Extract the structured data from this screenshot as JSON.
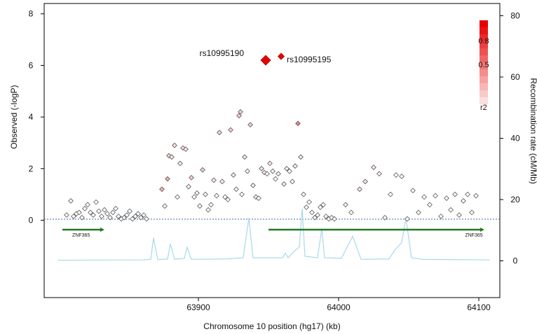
{
  "chart_data": {
    "type": "scatter",
    "title": "",
    "xlabel": "Chromosome 10 position (hg17) (kb)",
    "ylabel": "Observed (-logP)",
    "y2label": "Recombination rate (cM/Mb)",
    "xlim": [
      63790,
      64115
    ],
    "ylim": [
      -3,
      8.4
    ],
    "y2lim": [
      -12,
      84
    ],
    "x_ticks": [
      63900,
      64000,
      64100
    ],
    "y_ticks": [
      0,
      2,
      4,
      6,
      8
    ],
    "y2_ticks": [
      0,
      20,
      40,
      60,
      80
    ],
    "grid": false,
    "legend": {
      "position": "top-right",
      "title": "r2",
      "labels": [
        "0.8",
        "0.5"
      ]
    },
    "colors": {
      "high_ld": "#e80000",
      "mid_ld": "#d98080",
      "low_ld": "#ffffff",
      "marker_stroke": "#555555",
      "recomb_line": "#a8d8ec",
      "gene_line": "#1f7a1f",
      "baseline": "#3a6ea5"
    },
    "annotations": [
      {
        "text": "rs10995190",
        "x": 63948,
        "y": 6.2
      },
      {
        "text": "rs10995195",
        "x": 63959,
        "y": 6.35
      }
    ],
    "lead_snps": [
      {
        "x": 63948,
        "y": 6.2,
        "r2": 1.0
      },
      {
        "x": 63959,
        "y": 6.35,
        "r2": 0.95
      }
    ],
    "genes": [
      {
        "name": "ZNF365",
        "start": 63803,
        "end": 63833
      },
      {
        "name": "ZNF365",
        "start": 63950,
        "end": 64104
      }
    ],
    "series": [
      {
        "points": [
          {
            "x": 63806,
            "y": 0.2,
            "r2": 0
          },
          {
            "x": 63809,
            "y": 0.75,
            "r2": 0
          },
          {
            "x": 63811,
            "y": 0.15,
            "r2": 0
          },
          {
            "x": 63813,
            "y": 0.25,
            "r2": 0
          },
          {
            "x": 63815,
            "y": 0.3,
            "r2": 0
          },
          {
            "x": 63817,
            "y": 0.1,
            "r2": 0
          },
          {
            "x": 63819,
            "y": 0.45,
            "r2": 0
          },
          {
            "x": 63821,
            "y": 0.6,
            "r2": 0
          },
          {
            "x": 63823,
            "y": 0.3,
            "r2": 0
          },
          {
            "x": 63825,
            "y": 0.2,
            "r2": 0
          },
          {
            "x": 63827,
            "y": 0.7,
            "r2": 0
          },
          {
            "x": 63829,
            "y": 0.35,
            "r2": 0
          },
          {
            "x": 63831,
            "y": 0.15,
            "r2": 0
          },
          {
            "x": 63833,
            "y": 0.4,
            "r2": 0
          },
          {
            "x": 63835,
            "y": 0.25,
            "r2": 0
          },
          {
            "x": 63837,
            "y": 0.1,
            "r2": 0
          },
          {
            "x": 63839,
            "y": 0.3,
            "r2": 0
          },
          {
            "x": 63841,
            "y": 0.45,
            "r2": 0
          },
          {
            "x": 63843,
            "y": 0.15,
            "r2": 0
          },
          {
            "x": 63845,
            "y": 0.05,
            "r2": 0
          },
          {
            "x": 63847,
            "y": 0.1,
            "r2": 0
          },
          {
            "x": 63849,
            "y": 0.2,
            "r2": 0
          },
          {
            "x": 63851,
            "y": 0.35,
            "r2": 0
          },
          {
            "x": 63853,
            "y": 0.05,
            "r2": 0
          },
          {
            "x": 63855,
            "y": 0.15,
            "r2": 0
          },
          {
            "x": 63857,
            "y": 0.25,
            "r2": 0
          },
          {
            "x": 63859,
            "y": 0.1,
            "r2": 0
          },
          {
            "x": 63861,
            "y": 0.2,
            "r2": 0
          },
          {
            "x": 63863,
            "y": 0.05,
            "r2": 0
          },
          {
            "x": 63874,
            "y": 1.2,
            "r2": 0.3
          },
          {
            "x": 63876,
            "y": 0.55,
            "r2": 0
          },
          {
            "x": 63878,
            "y": 1.6,
            "r2": 0.35
          },
          {
            "x": 63879,
            "y": 2.5,
            "r2": 0.2
          },
          {
            "x": 63881,
            "y": 2.45,
            "r2": 0.1
          },
          {
            "x": 63883,
            "y": 2.9,
            "r2": 0.15
          },
          {
            "x": 63885,
            "y": 0.9,
            "r2": 0
          },
          {
            "x": 63887,
            "y": 2.2,
            "r2": 0.1
          },
          {
            "x": 63889,
            "y": 2.8,
            "r2": 0.15
          },
          {
            "x": 63891,
            "y": 2.75,
            "r2": 0.1
          },
          {
            "x": 63893,
            "y": 1.3,
            "r2": 0.05
          },
          {
            "x": 63895,
            "y": 1.65,
            "r2": 0.2
          },
          {
            "x": 63897,
            "y": 0.9,
            "r2": 0
          },
          {
            "x": 63899,
            "y": 1.05,
            "r2": 0.05
          },
          {
            "x": 63901,
            "y": 0.55,
            "r2": 0
          },
          {
            "x": 63903,
            "y": 1.95,
            "r2": 0.2
          },
          {
            "x": 63905,
            "y": 1.0,
            "r2": 0.05
          },
          {
            "x": 63907,
            "y": 0.4,
            "r2": 0
          },
          {
            "x": 63909,
            "y": 0.6,
            "r2": 0
          },
          {
            "x": 63911,
            "y": 1.55,
            "r2": 0.1
          },
          {
            "x": 63913,
            "y": 0.95,
            "r2": 0
          },
          {
            "x": 63915,
            "y": 3.4,
            "r2": 0.15
          },
          {
            "x": 63917,
            "y": 1.5,
            "r2": 0.05
          },
          {
            "x": 63919,
            "y": 0.9,
            "r2": 0
          },
          {
            "x": 63921,
            "y": 0.8,
            "r2": 0
          },
          {
            "x": 63923,
            "y": 3.5,
            "r2": 0.2
          },
          {
            "x": 63925,
            "y": 1.75,
            "r2": 0.1
          },
          {
            "x": 63927,
            "y": 1.2,
            "r2": 0.05
          },
          {
            "x": 63929,
            "y": 4.05,
            "r2": 0.2
          },
          {
            "x": 63930,
            "y": 4.2,
            "r2": 0.2
          },
          {
            "x": 63931,
            "y": 1.0,
            "r2": 0
          },
          {
            "x": 63933,
            "y": 2.45,
            "r2": 0.1
          },
          {
            "x": 63935,
            "y": 1.9,
            "r2": 0.05
          },
          {
            "x": 63937,
            "y": 3.7,
            "r2": 0.2
          },
          {
            "x": 63939,
            "y": 1.35,
            "r2": 0.1
          },
          {
            "x": 63941,
            "y": 0.9,
            "r2": 0.1
          },
          {
            "x": 63943,
            "y": 0.85,
            "r2": 0
          },
          {
            "x": 63945,
            "y": 2.0,
            "r2": 0.1
          },
          {
            "x": 63947,
            "y": 1.85,
            "r2": 0.1
          },
          {
            "x": 63949,
            "y": 1.8,
            "r2": 0
          },
          {
            "x": 63951,
            "y": 2.2,
            "r2": 0.1
          },
          {
            "x": 63953,
            "y": 1.9,
            "r2": 0.05
          },
          {
            "x": 63955,
            "y": 1.6,
            "r2": 0
          },
          {
            "x": 63957,
            "y": 1.8,
            "r2": 0.05
          },
          {
            "x": 63961,
            "y": 1.4,
            "r2": 0.1
          },
          {
            "x": 63963,
            "y": 2.0,
            "r2": 0.05
          },
          {
            "x": 63965,
            "y": 1.9,
            "r2": 0
          },
          {
            "x": 63967,
            "y": 1.5,
            "r2": 0
          },
          {
            "x": 63969,
            "y": 2.1,
            "r2": 0.1
          },
          {
            "x": 63971,
            "y": 3.75,
            "r2": 0.5
          },
          {
            "x": 63973,
            "y": 2.45,
            "r2": 0.1
          },
          {
            "x": 63975,
            "y": 1.0,
            "r2": 0
          },
          {
            "x": 63977,
            "y": 0.5,
            "r2": 0
          },
          {
            "x": 63979,
            "y": 0.7,
            "r2": 0
          },
          {
            "x": 63981,
            "y": 0.3,
            "r2": 0
          },
          {
            "x": 63983,
            "y": 0.1,
            "r2": 0
          },
          {
            "x": 63985,
            "y": 0.2,
            "r2": 0
          },
          {
            "x": 63987,
            "y": 0.5,
            "r2": 0
          },
          {
            "x": 63989,
            "y": 0.6,
            "r2": 0
          },
          {
            "x": 63991,
            "y": 0.15,
            "r2": 0
          },
          {
            "x": 63993,
            "y": 0.05,
            "r2": 0
          },
          {
            "x": 63995,
            "y": 0.1,
            "r2": 0
          },
          {
            "x": 63997,
            "y": 0.05,
            "r2": 0
          },
          {
            "x": 64005,
            "y": 0.6,
            "r2": 0.05
          },
          {
            "x": 64009,
            "y": 0.3,
            "r2": 0
          },
          {
            "x": 64015,
            "y": 1.2,
            "r2": 0.1
          },
          {
            "x": 64019,
            "y": 1.5,
            "r2": 0.1
          },
          {
            "x": 64025,
            "y": 2.05,
            "r2": 0.1
          },
          {
            "x": 64029,
            "y": 1.8,
            "r2": 0.05
          },
          {
            "x": 64033,
            "y": 0.1,
            "r2": 0
          },
          {
            "x": 64037,
            "y": 1.0,
            "r2": 0
          },
          {
            "x": 64041,
            "y": 1.75,
            "r2": 0
          },
          {
            "x": 64045,
            "y": 1.7,
            "r2": 0
          },
          {
            "x": 64049,
            "y": 0.05,
            "r2": 0
          },
          {
            "x": 64053,
            "y": 1.15,
            "r2": 0
          },
          {
            "x": 64057,
            "y": 0.3,
            "r2": 0
          },
          {
            "x": 64061,
            "y": 0.9,
            "r2": 0
          },
          {
            "x": 64065,
            "y": 0.6,
            "r2": 0
          },
          {
            "x": 64069,
            "y": 0.95,
            "r2": 0
          },
          {
            "x": 64073,
            "y": 0.15,
            "r2": 0
          },
          {
            "x": 64077,
            "y": 0.85,
            "r2": 0
          },
          {
            "x": 64080,
            "y": 0.4,
            "r2": 0
          },
          {
            "x": 64083,
            "y": 1.0,
            "r2": 0
          },
          {
            "x": 64086,
            "y": 0.2,
            "r2": 0
          },
          {
            "x": 64089,
            "y": 0.75,
            "r2": 0
          },
          {
            "x": 64092,
            "y": 1.0,
            "r2": 0
          },
          {
            "x": 64095,
            "y": 0.3,
            "r2": 0
          },
          {
            "x": 64098,
            "y": 0.95,
            "r2": 0
          }
        ]
      }
    ],
    "recombination": [
      [
        63800,
        0.2
      ],
      [
        63860,
        0.3
      ],
      [
        63866,
        0.5
      ],
      [
        63868,
        7.5
      ],
      [
        63871,
        0.4
      ],
      [
        63878,
        0.6
      ],
      [
        63880,
        5.5
      ],
      [
        63883,
        0.5
      ],
      [
        63890,
        0.8
      ],
      [
        63892,
        4.5
      ],
      [
        63895,
        0.5
      ],
      [
        63920,
        0.6
      ],
      [
        63932,
        1.0
      ],
      [
        63936,
        14
      ],
      [
        63939,
        1.0
      ],
      [
        63960,
        1.0
      ],
      [
        63962,
        2.5
      ],
      [
        63964,
        1.0
      ],
      [
        63968,
        3.0
      ],
      [
        63972,
        4.5
      ],
      [
        63974,
        17
      ],
      [
        63976,
        1.5
      ],
      [
        63985,
        1.0
      ],
      [
        63988,
        10.5
      ],
      [
        63990,
        1.0
      ],
      [
        64002,
        0.8
      ],
      [
        64010,
        8.0
      ],
      [
        64016,
        0.5
      ],
      [
        64036,
        0.6
      ],
      [
        64040,
        3.5
      ],
      [
        64045,
        6.0
      ],
      [
        64048,
        14
      ],
      [
        64052,
        1.0
      ],
      [
        64060,
        0.5
      ],
      [
        64108,
        0.3
      ]
    ]
  }
}
